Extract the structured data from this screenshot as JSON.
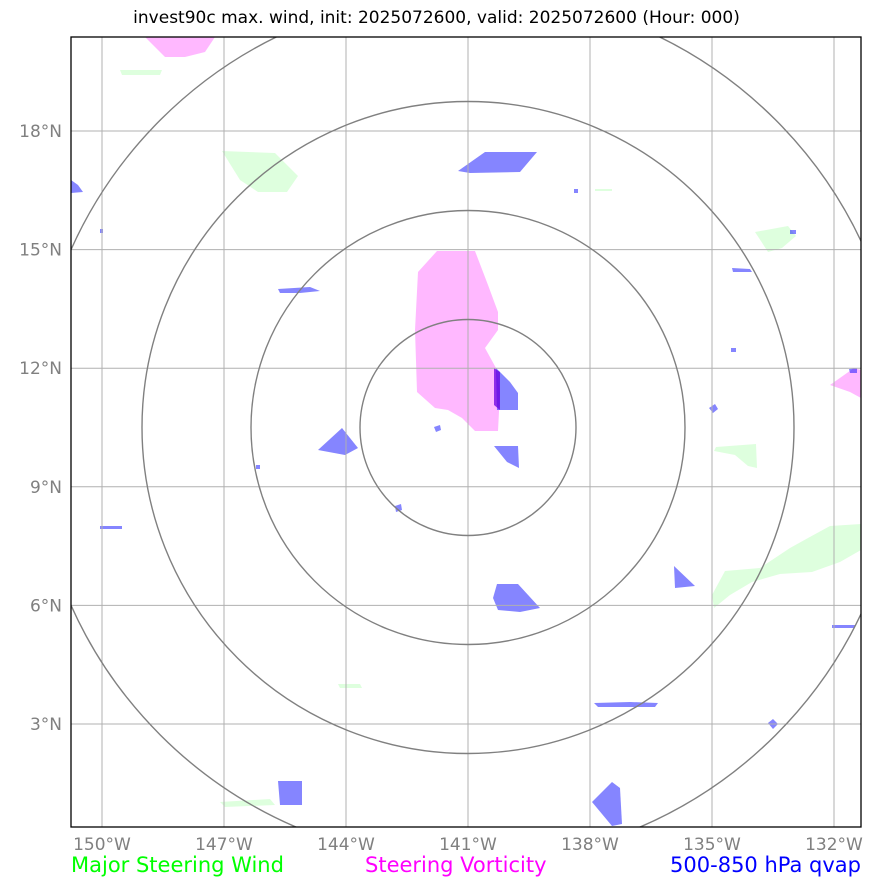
{
  "title": "invest90c max. wind, init: 2025072600, valid: 2025072600 (Hour: 000)",
  "legend": {
    "major_steering_wind": "Major Steering Wind",
    "steering_vorticity": "Steering Vorticity",
    "qvap": "500-850 hPa qvap"
  },
  "colors": {
    "wind": "#00ff00",
    "vorticity": "#ff00ff",
    "qvap": "#0000ff",
    "grid": "#b0b0b0",
    "rings": "#808080"
  },
  "map": {
    "lon_ticks": [
      "150°W",
      "147°W",
      "144°W",
      "141°W",
      "138°W",
      "135°W",
      "132°W"
    ],
    "lat_ticks": [
      "18°N",
      "15°N",
      "12°N",
      "9°N",
      "6°N",
      "3°N"
    ],
    "lon_values": [
      -150,
      -147,
      -144,
      -141,
      -138,
      -135,
      -132
    ],
    "lat_values": [
      18,
      15,
      12,
      9,
      6,
      3
    ],
    "center": {
      "lon": -141.0,
      "lat": 10.5
    },
    "range_rings": 4
  }
}
